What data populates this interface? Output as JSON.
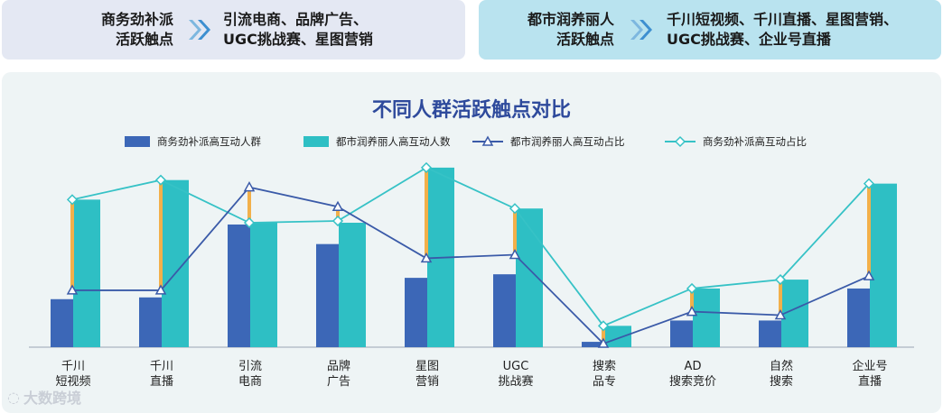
{
  "cards": [
    {
      "label": "商务劲补派\n活跃触点",
      "touchpoints": "引流电商、品牌广告、\nUGC挑战赛、星图营销"
    },
    {
      "label": "都市润养丽人\n活跃触点",
      "touchpoints": "千川短视频、千川直播、星图营销、\nUGC挑战赛、企业号直播"
    }
  ],
  "watermark": "大数跨境",
  "colors": {
    "bar1": "#3c67b7",
    "bar2": "#2ebfc4",
    "line1": "#3a5aa8",
    "line2": "#36c2c6",
    "connector": "#f2b04a"
  },
  "chart_data": {
    "type": "bar",
    "title": "不同人群活跃触点对比",
    "categories": [
      "千川\n短视频",
      "千川\n直播",
      "引流\n电商",
      "品牌\n广告",
      "星图\n营销",
      "UGC\n挑战赛",
      "搜索\n品专",
      "AD\n搜索竞价",
      "自然\n搜索",
      "企业号\n直播"
    ],
    "series": [
      {
        "name": "商务劲补派高互动人群",
        "kind": "bar",
        "values": [
          27,
          28,
          69,
          58,
          39,
          41,
          3,
          15,
          15,
          33
        ]
      },
      {
        "name": "都市润养丽人高互动人数",
        "kind": "bar",
        "values": [
          83,
          94,
          70,
          70,
          101,
          78,
          12,
          33,
          38,
          92
        ]
      },
      {
        "name": "都市润养丽人高互动占比",
        "kind": "line",
        "marker": "triangle",
        "values": [
          32,
          32,
          90,
          79,
          50,
          52,
          2,
          20,
          18,
          40
        ]
      },
      {
        "name": "商务劲补派高互动占比",
        "kind": "line",
        "marker": "diamond",
        "values": [
          83,
          94,
          70,
          71,
          101,
          78,
          12,
          33,
          38,
          92
        ]
      }
    ],
    "legend_position": "top",
    "grid": false
  }
}
